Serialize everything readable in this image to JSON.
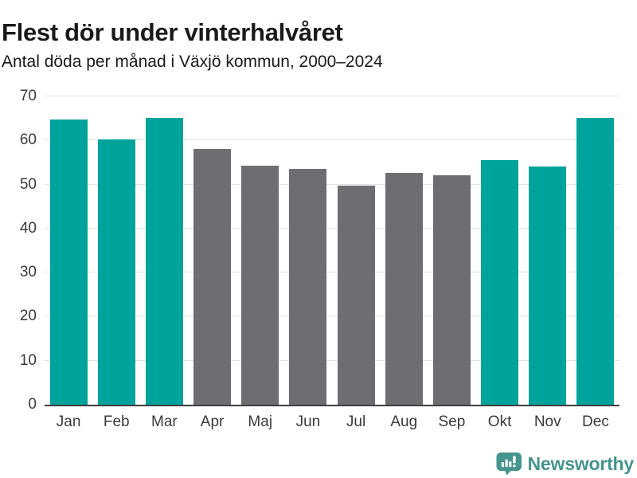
{
  "chart_data": {
    "type": "bar",
    "title": "Flest dör under vinterhalvåret",
    "subtitle": "Antal döda per månad i Växjö kommun, 2000–2024",
    "xlabel": "",
    "ylabel": "",
    "categories": [
      "Jan",
      "Feb",
      "Mar",
      "Apr",
      "Maj",
      "Jun",
      "Jul",
      "Aug",
      "Sep",
      "Okt",
      "Nov",
      "Dec"
    ],
    "values": [
      64.8,
      60.3,
      65.2,
      58.1,
      54.3,
      53.6,
      49.7,
      52.7,
      52.1,
      55.6,
      54.1,
      65.2
    ],
    "highlighted": [
      true,
      true,
      true,
      false,
      false,
      false,
      false,
      false,
      false,
      true,
      true,
      true
    ],
    "colors": {
      "highlight": "#00a39b",
      "base": "#6e6e72"
    },
    "ylim": [
      0,
      70
    ],
    "yticks": [
      0,
      10,
      20,
      30,
      40,
      50,
      60,
      70
    ],
    "grid": true,
    "legend": "none",
    "grid_color": "#e2e2e2",
    "axis_color": "#3f3f3f",
    "tick_label_color": "#3a3a3a"
  },
  "footer": {
    "brand": "Newsworthy",
    "brand_color": "#45948e",
    "logo_icon": "newsworthy-speech-bubble-bar-chart-icon"
  }
}
